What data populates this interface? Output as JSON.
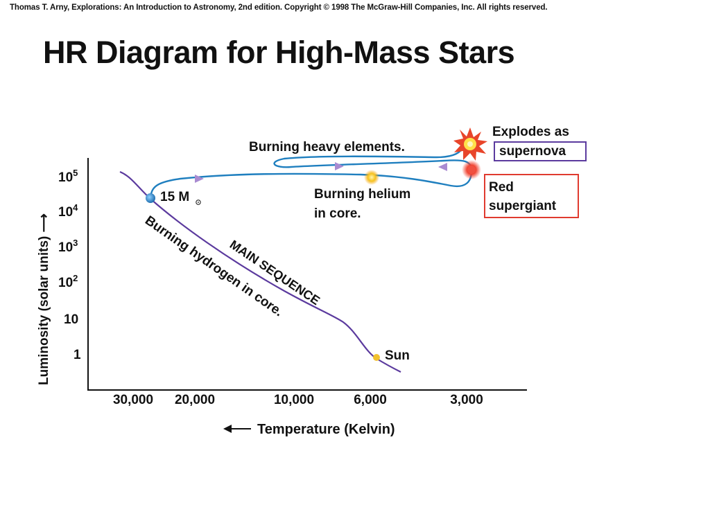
{
  "header": {
    "copyright": "Thomas T. Arny, Explorations: An Introduction to Astronomy, 2nd edition. Copyright © 1998 The McGraw-Hill Companies, Inc. All rights reserved.",
    "title": "HR Diagram for High-Mass Stars"
  },
  "diagram": {
    "ylabel": "Luminosity (solar units) ⟶",
    "xlabel": "Temperature (Kelvin)",
    "y_ticks": [
      {
        "base": "10",
        "exp": "5"
      },
      {
        "base": "10",
        "exp": "4"
      },
      {
        "base": "10",
        "exp": "3"
      },
      {
        "base": "10",
        "exp": "2"
      },
      {
        "base": "10",
        "exp": ""
      },
      {
        "base": "1",
        "exp": ""
      }
    ],
    "x_ticks": [
      "30,000",
      "20,000",
      "10,000",
      "6,000",
      "3,000"
    ],
    "labels": {
      "mass_number": "15 M",
      "sun": "Sun",
      "main_sequence": "MAIN SEQUENCE",
      "burning_hydrogen": "Burning hydrogen in core.",
      "burning_heavy": "Burning heavy elements.",
      "burning_helium_1": "Burning helium",
      "burning_helium_2": "in core.",
      "explodes_as": "Explodes as",
      "supernova": "supernova",
      "red_supergiant_1": "Red",
      "red_supergiant_2": "supergiant"
    },
    "colors": {
      "main_sequence_line": "#5b3a9e",
      "track_line": "#1f7fbf",
      "arrow": "#a98bd1",
      "supernova_box": "#5b3a9e",
      "supergiant_box": "#e03a2f",
      "sun_dot": "#f2c230",
      "start_star": "#2b86c8",
      "red_star": "#e8312a"
    }
  }
}
